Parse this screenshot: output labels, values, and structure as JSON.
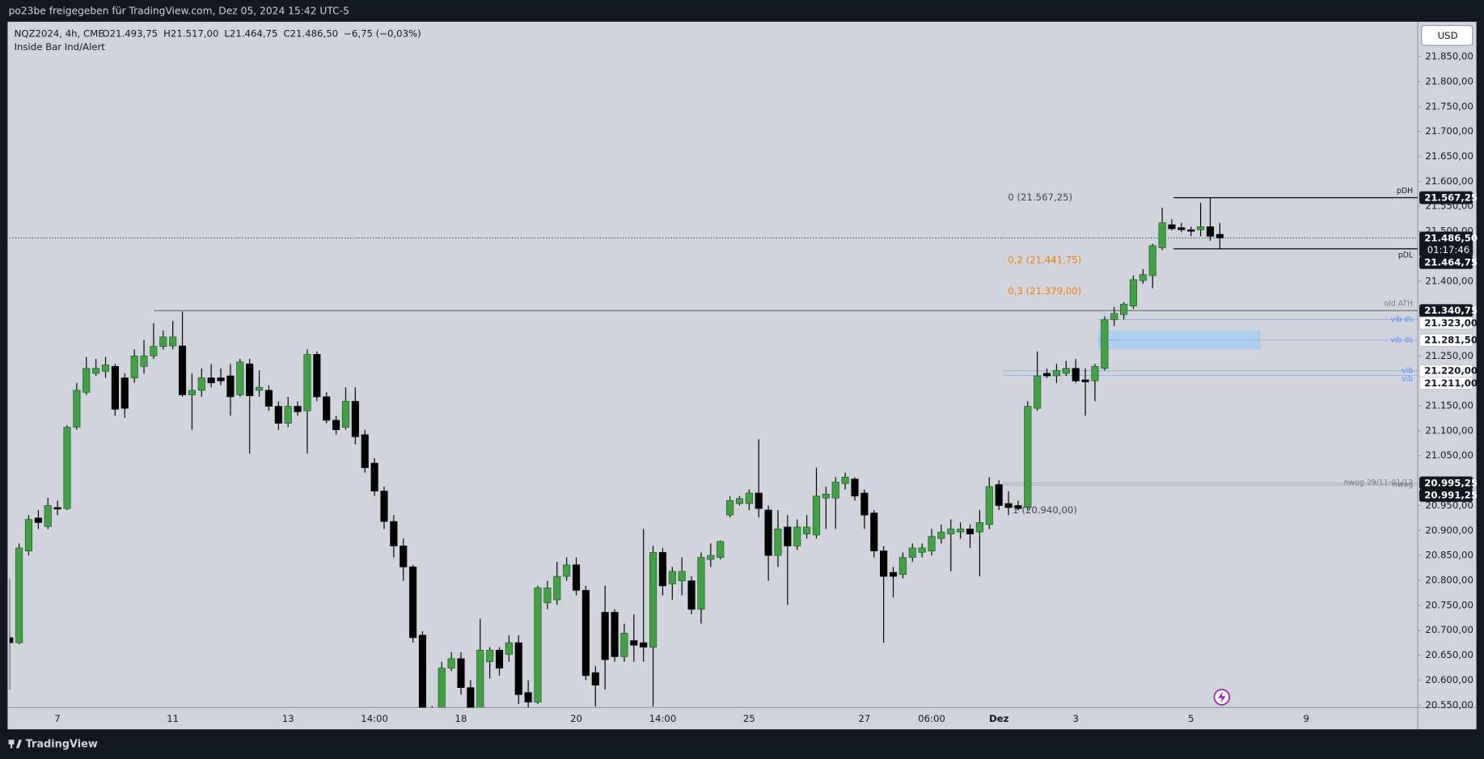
{
  "header": {
    "share_note": "po23be freigegeben für TradingView.com, Dez 05, 2024 15:42 UTC-5"
  },
  "footer": {
    "brand": "TradingView"
  },
  "chart_data": {
    "type": "candlestick",
    "symbol": "NQZ2024, 4h, CME",
    "ohlc": [
      "O21.493,75",
      "H21.517,00",
      "L21.464,75",
      "C21.486,50"
    ],
    "change": "−6,75 (−0,03%)",
    "indicator": "Inside Bar Ind/Alert",
    "currency": "USD",
    "colors": {
      "up": "#43a047",
      "down": "#000000"
    },
    "ylim": [
      20545,
      21920
    ],
    "yticks": [
      {
        "value": 21850,
        "label": "21.850,00"
      },
      {
        "value": 21800,
        "label": "21.800,00"
      },
      {
        "value": 21750,
        "label": "21.750,00"
      },
      {
        "value": 21700,
        "label": "21.700,00"
      },
      {
        "value": 21650,
        "label": "21.650,00"
      },
      {
        "value": 21600,
        "label": "21.600,00"
      },
      {
        "value": 21550,
        "label": "21.550,00"
      },
      {
        "value": 21500,
        "label": "21.500,00"
      },
      {
        "value": 21400,
        "label": "21.400,00"
      },
      {
        "value": 21250,
        "label": "21.250,00"
      },
      {
        "value": 21150,
        "label": "21.150,00"
      },
      {
        "value": 21100,
        "label": "21.100,00"
      },
      {
        "value": 21050,
        "label": "21.050,00"
      },
      {
        "value": 20950,
        "label": "20.950,00"
      },
      {
        "value": 20900,
        "label": "20.900,00"
      },
      {
        "value": 20850,
        "label": "20.850,00"
      },
      {
        "value": 20800,
        "label": "20.800,00"
      },
      {
        "value": 20750,
        "label": "20.750,00"
      },
      {
        "value": 20700,
        "label": "20.700,00"
      },
      {
        "value": 20650,
        "label": "20.650,00"
      },
      {
        "value": 20600,
        "label": "20.600,00"
      },
      {
        "value": 20550,
        "label": "20.550,00"
      }
    ],
    "categories": [
      null,
      null,
      null,
      null,
      null,
      "7",
      null,
      null,
      null,
      null,
      null,
      null,
      null,
      null,
      null,
      null,
      null,
      "11",
      null,
      null,
      null,
      null,
      null,
      null,
      null,
      null,
      null,
      null,
      null,
      "13",
      null,
      null,
      null,
      null,
      null,
      null,
      null,
      null,
      "14:00",
      null,
      null,
      null,
      null,
      null,
      null,
      null,
      null,
      "18",
      null,
      null,
      null,
      null,
      null,
      null,
      null,
      null,
      null,
      null,
      null,
      "20",
      null,
      null,
      null,
      null,
      null,
      null,
      null,
      null,
      "14:00",
      null,
      null,
      null,
      null,
      null,
      null,
      null,
      null,
      "25",
      null,
      null,
      null,
      null,
      null,
      null,
      null,
      null,
      null,
      null,
      null,
      "27",
      null,
      null,
      null,
      null,
      null,
      null,
      "06:00",
      null,
      null,
      null,
      null,
      null,
      null,
      "Dez",
      null,
      null,
      null,
      null,
      null,
      null,
      null,
      "3",
      null,
      null,
      null,
      null,
      null,
      null,
      null,
      null,
      null,
      null,
      null,
      "5",
      null,
      null,
      null,
      null,
      null,
      null,
      null,
      null,
      null,
      null,
      null,
      "9",
      null,
      null,
      null,
      null,
      null,
      null,
      null,
      null,
      null,
      null,
      null
    ],
    "candles": [
      [
        20685,
        20803,
        20581,
        20675
      ],
      [
        20675,
        20874,
        20672,
        20865
      ],
      [
        20859,
        20931,
        20850,
        20922
      ],
      [
        20925,
        20941,
        20903,
        20916
      ],
      [
        20908,
        20965,
        20903,
        20950
      ],
      [
        20946,
        20960,
        20931,
        20943
      ],
      [
        20944,
        21111,
        20941,
        21107
      ],
      [
        21107,
        21196,
        21102,
        21181
      ],
      [
        21177,
        21248,
        21172,
        21225
      ],
      [
        21215,
        21244,
        21210,
        21225
      ],
      [
        21219,
        21248,
        21206,
        21232
      ],
      [
        21229,
        21234,
        21130,
        21143
      ],
      [
        21206,
        21215,
        21126,
        21145
      ],
      [
        21206,
        21263,
        21196,
        21250
      ],
      [
        21229,
        21282,
        21215,
        21250
      ],
      [
        21250,
        21316,
        21244,
        21269
      ],
      [
        21269,
        21301,
        21263,
        21288
      ],
      [
        21270,
        21320,
        21263,
        21288
      ],
      [
        21270,
        21339,
        21168,
        21172
      ],
      [
        21172,
        21215,
        21102,
        21181
      ],
      [
        21181,
        21225,
        21168,
        21206
      ],
      [
        21206,
        21234,
        21187,
        21196
      ],
      [
        21206,
        21225,
        21191,
        21200
      ],
      [
        21210,
        21234,
        21130,
        21168
      ],
      [
        21172,
        21244,
        21168,
        21238
      ],
      [
        21234,
        21244,
        21054,
        21170
      ],
      [
        21181,
        21221,
        21168,
        21187
      ],
      [
        21181,
        21191,
        21140,
        21149
      ],
      [
        21149,
        21159,
        21102,
        21115
      ],
      [
        21115,
        21168,
        21107,
        21149
      ],
      [
        21149,
        21159,
        21130,
        21138
      ],
      [
        21140,
        21263,
        21054,
        21253
      ],
      [
        21253,
        21259,
        21159,
        21168
      ],
      [
        21168,
        21177,
        21115,
        21121
      ],
      [
        21121,
        21130,
        21092,
        21102
      ],
      [
        21107,
        21187,
        21102,
        21159
      ],
      [
        21159,
        21187,
        21073,
        21088
      ],
      [
        21092,
        21102,
        21016,
        21026
      ],
      [
        21035,
        21045,
        20969,
        20979
      ],
      [
        20979,
        20988,
        20903,
        20918
      ],
      [
        20918,
        20931,
        20846,
        20869
      ],
      [
        20869,
        20884,
        20799,
        20827
      ],
      [
        20827,
        20831,
        20675,
        20685
      ],
      [
        20690,
        20698,
        20510,
        20530
      ],
      [
        20530,
        20548,
        20470,
        20490
      ],
      [
        20500,
        20637,
        20490,
        20624
      ],
      [
        20624,
        20656,
        20618,
        20643
      ],
      [
        20643,
        20656,
        20571,
        20585
      ],
      [
        20585,
        20600,
        20500,
        20520
      ],
      [
        20520,
        20723,
        20510,
        20660
      ],
      [
        20637,
        20666,
        20603,
        20660
      ],
      [
        20660,
        20666,
        20609,
        20624
      ],
      [
        20652,
        20690,
        20637,
        20675
      ],
      [
        20675,
        20690,
        20552,
        20571
      ],
      [
        20575,
        20600,
        20540,
        20556
      ],
      [
        20556,
        20789,
        20552,
        20785
      ],
      [
        20755,
        20799,
        20742,
        20785
      ],
      [
        20761,
        20837,
        20751,
        20808
      ],
      [
        20808,
        20846,
        20799,
        20831
      ],
      [
        20831,
        20846,
        20770,
        20780
      ],
      [
        20780,
        20789,
        20600,
        20609
      ],
      [
        20615,
        20628,
        20547,
        20590
      ],
      [
        20736,
        20789,
        20581,
        20641
      ],
      [
        20736,
        20742,
        20637,
        20647
      ],
      [
        20647,
        20713,
        20637,
        20694
      ],
      [
        20679,
        20732,
        20637,
        20670
      ],
      [
        20675,
        20903,
        20637,
        20666
      ],
      [
        20666,
        20869,
        20547,
        20856
      ],
      [
        20856,
        20865,
        20770,
        20789
      ],
      [
        20793,
        20827,
        20761,
        20818
      ],
      [
        20799,
        20846,
        20770,
        20818
      ],
      [
        20799,
        20808,
        20732,
        20742
      ],
      [
        20742,
        20856,
        20713,
        20846
      ],
      [
        20842,
        20874,
        20827,
        20850
      ],
      [
        20846,
        20880,
        20842,
        20878
      ],
      [
        20931,
        20969,
        20926,
        20960
      ],
      [
        20954,
        20969,
        20950,
        20964
      ],
      [
        20954,
        20982,
        20941,
        20975
      ],
      [
        20975,
        21083,
        20926,
        20944
      ],
      [
        20941,
        20950,
        20799,
        20850
      ],
      [
        20850,
        20941,
        20827,
        20903
      ],
      [
        20907,
        20931,
        20751,
        20869
      ],
      [
        20869,
        20922,
        20861,
        20907
      ],
      [
        20893,
        20931,
        20884,
        20907
      ],
      [
        20891,
        21026,
        20884,
        20969
      ],
      [
        20965,
        20988,
        20903,
        20973
      ],
      [
        20965,
        21007,
        20903,
        20997
      ],
      [
        20994,
        21016,
        20982,
        21007
      ],
      [
        21003,
        21007,
        20960,
        20969
      ],
      [
        20975,
        20982,
        20903,
        20931
      ],
      [
        20935,
        20941,
        20846,
        20859
      ],
      [
        20859,
        20869,
        20675,
        20808
      ],
      [
        20816,
        20827,
        20766,
        20808
      ],
      [
        20812,
        20856,
        20804,
        20846
      ],
      [
        20846,
        20874,
        20837,
        20865
      ],
      [
        20856,
        20874,
        20846,
        20865
      ],
      [
        20859,
        20903,
        20850,
        20888
      ],
      [
        20884,
        20912,
        20874,
        20897
      ],
      [
        20893,
        20922,
        20818,
        20903
      ],
      [
        20897,
        20916,
        20884,
        20903
      ],
      [
        20903,
        20912,
        20865,
        20893
      ],
      [
        20897,
        20941,
        20808,
        20916
      ],
      [
        20912,
        21007,
        20903,
        20988
      ],
      [
        20992,
        21001,
        20941,
        20950
      ],
      [
        20954,
        20979,
        20931,
        20946
      ],
      [
        20950,
        20960,
        20940,
        20944
      ],
      [
        20946,
        21159,
        20941,
        21149
      ],
      [
        21145,
        21259,
        21140,
        21210
      ],
      [
        21215,
        21225,
        21206,
        21210
      ],
      [
        21210,
        21234,
        21196,
        21221
      ],
      [
        21215,
        21240,
        21210,
        21225
      ],
      [
        21225,
        21244,
        21196,
        21200
      ],
      [
        21202,
        21225,
        21130,
        21198
      ],
      [
        21200,
        21234,
        21159,
        21229
      ],
      [
        21225,
        21329,
        21221,
        21323
      ],
      [
        21323,
        21348,
        21310,
        21335
      ],
      [
        21333,
        21358,
        21323,
        21354
      ],
      [
        21350,
        21411,
        21344,
        21403
      ],
      [
        21401,
        21424,
        21395,
        21413
      ],
      [
        21411,
        21475,
        21386,
        21471
      ],
      [
        21467,
        21547,
        21462,
        21517
      ],
      [
        21513,
        21524,
        21502,
        21505
      ],
      [
        21507,
        21517,
        21498,
        21503
      ],
      [
        21503,
        21509,
        21490,
        21500
      ],
      [
        21503,
        21557,
        21490,
        21509
      ],
      [
        21509,
        21567.25,
        21481,
        21490
      ],
      [
        21493.75,
        21517,
        21464.75,
        21486.5
      ],
      null,
      null,
      null,
      null,
      null,
      null,
      null,
      null,
      null,
      null,
      null,
      null,
      null,
      null,
      null,
      null,
      null,
      null,
      null,
      null
    ],
    "levels": [
      {
        "label": "pDH",
        "value": 21567.25,
        "color": "#131722"
      },
      {
        "label": "pDL",
        "value": 21464.75,
        "color": "#131722"
      },
      {
        "label": "old ATH",
        "value": 21340.75,
        "color": "#787b86"
      },
      {
        "label": "vib ds",
        "value": 21323,
        "color": "#5b8def"
      },
      {
        "label": "vib ds",
        "value": 21281.5,
        "color": "#5b8def"
      },
      {
        "label": "vib",
        "value": 21220,
        "color": "#5b8def"
      },
      {
        "label": "vib",
        "value": 21211,
        "color": "#5b8def"
      },
      {
        "label": "nwog 29/11-01/12",
        "value": 20995.25,
        "color": "#787b86"
      },
      {
        "label": "nwog",
        "value": 20991.25,
        "color": "#787b86"
      }
    ],
    "vib_zone": {
      "low": 21263,
      "high": 21301,
      "color": "#90caf9"
    },
    "fib_labels": [
      {
        "label": "0 (21.567,25)",
        "value": 21567.25,
        "color": "#434651"
      },
      {
        "label": "0,2 (21.441,75)",
        "value": 21441.75,
        "color": "#f57c00"
      },
      {
        "label": "0,3 (21.379,00)",
        "value": 21379,
        "color": "#f57c00"
      },
      {
        "label": "1 (20.940,00)",
        "value": 20940,
        "color": "#434651"
      }
    ],
    "price_labels": [
      {
        "value": 21567.25,
        "label": "21.567,25",
        "style": "dark"
      },
      {
        "value": 21486.5,
        "label": "21.486,50",
        "timer": "01:17:46",
        "style": "dark"
      },
      {
        "value": 21464.75,
        "label": "21.464,75",
        "style": "dark"
      },
      {
        "value": 21340.75,
        "label": "21.340,75",
        "style": "dark"
      },
      {
        "value": 21323,
        "label": "21.323,00",
        "style": "light"
      },
      {
        "value": 21281.5,
        "label": "21.281,50",
        "style": "light"
      },
      {
        "value": 21220,
        "label": "21.220,00",
        "style": "light"
      },
      {
        "value": 21211,
        "label": "21.211,00",
        "style": "light"
      },
      {
        "value": 20995.25,
        "label": "20.995,25",
        "style": "dark"
      },
      {
        "value": 20991.25,
        "label": "20.991,25",
        "style": "dark"
      }
    ]
  }
}
